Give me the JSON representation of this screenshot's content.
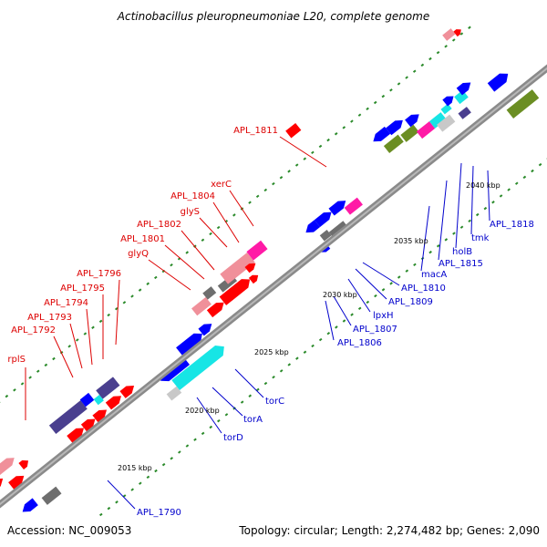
{
  "title": "Actinobacillus pleuropneumoniae L20, complete genome",
  "footer": {
    "accession": "Accession: NC_009053",
    "summary": "Topology: circular; Length: 2,274,482 bp; Genes: 2,090"
  },
  "colors": {
    "backbone": "#8a8a8a",
    "red": "#ff0000",
    "dark_red": "#dd0000",
    "pink": "#f0909a",
    "blue": "#0000ff",
    "navy": "#4a3f8f",
    "cyan": "#17e5e5",
    "magenta": "#ff1aa6",
    "gray": "#6e6e6e",
    "light_gray": "#c8c8c8",
    "olive": "#6b8e23",
    "orange": "#ffa500",
    "tick_green": "#2a8a2a",
    "label_red": "#dd0000",
    "label_blue": "#0000cc"
  },
  "tick_labels": [
    "2015 kbp",
    "2020 kbp",
    "2025 kbp",
    "2030 kbp",
    "2035 kbp",
    "2040 kbp"
  ],
  "labels_red": [
    "APL_1811",
    "xerC",
    "APL_1804",
    "glyS",
    "APL_1802",
    "APL_1801",
    "glyQ",
    "APL_1796",
    "APL_1795",
    "APL_1794",
    "APL_1793",
    "APL_1792",
    "rplS"
  ],
  "labels_blue": [
    "APL_1818",
    "tmk",
    "holB",
    "APL_1815",
    "macA",
    "APL_1810",
    "APL_1809",
    "lpxH",
    "APL_1807",
    "APL_1806",
    "torC",
    "torA",
    "torD",
    "APL_1790"
  ]
}
